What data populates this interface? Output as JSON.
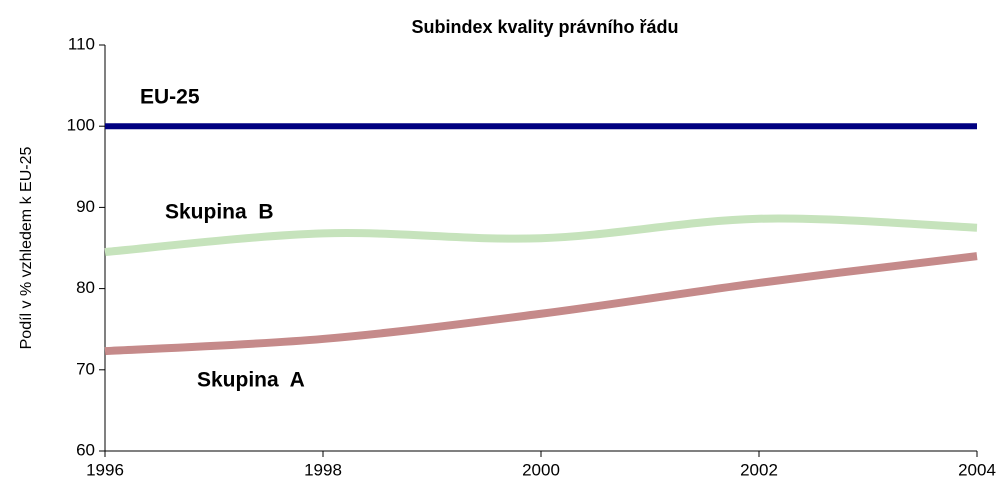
{
  "chart_data": {
    "type": "line",
    "title": "Subindex kvality právního řádu",
    "y_label": "Podíl v % vzhledem k EU-25",
    "x": [
      1996,
      1998,
      2000,
      2002,
      2004
    ],
    "series": [
      {
        "name": "EU-25",
        "color": "#000080",
        "label_color": "#000080",
        "values": [
          100,
          100,
          100,
          100,
          100
        ]
      },
      {
        "name": "Skupina  B",
        "color": "#c6e3bc",
        "label_color": "#1e8a1e",
        "values": [
          84.5,
          86.8,
          86.2,
          88.6,
          87.5
        ]
      },
      {
        "name": "Skupina  A",
        "color": "#c58a8a",
        "label_color": "#8b1c1c",
        "values": [
          72.3,
          73.8,
          76.9,
          80.7,
          84.0
        ]
      }
    ],
    "xlim": [
      1996,
      2004
    ],
    "xticks": [
      1996,
      1998,
      2000,
      2002,
      2004
    ],
    "ylim": [
      60,
      110
    ],
    "yticks": [
      60,
      70,
      80,
      90,
      100,
      110
    ],
    "grid": false
  }
}
